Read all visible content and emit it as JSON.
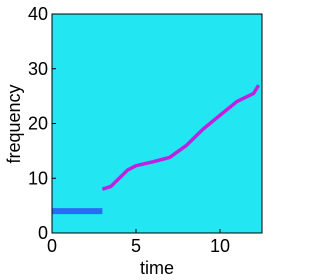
{
  "chart_data": {
    "type": "line",
    "x_label": "time",
    "y_label": "frequency",
    "background": "#22e6f2",
    "xlim": [
      0,
      12.5
    ],
    "xticks": [
      0,
      5,
      10
    ],
    "ylim": [
      0,
      40
    ],
    "yticks": [
      0,
      10,
      20,
      30,
      40
    ],
    "series": [
      {
        "color": "#c020e0",
        "x": [
          3,
          3.5,
          4,
          4.5,
          5,
          6,
          7,
          8,
          9,
          10,
          11,
          12,
          12.3
        ],
        "values": [
          8,
          8.5,
          10,
          11.5,
          12.3,
          13,
          13.8,
          16,
          19,
          21.5,
          24,
          25.5,
          27
        ]
      },
      {
        "color": "#2a6cf0",
        "x": [
          0,
          1,
          2,
          3
        ],
        "values": [
          4,
          4,
          4,
          4
        ]
      }
    ]
  }
}
